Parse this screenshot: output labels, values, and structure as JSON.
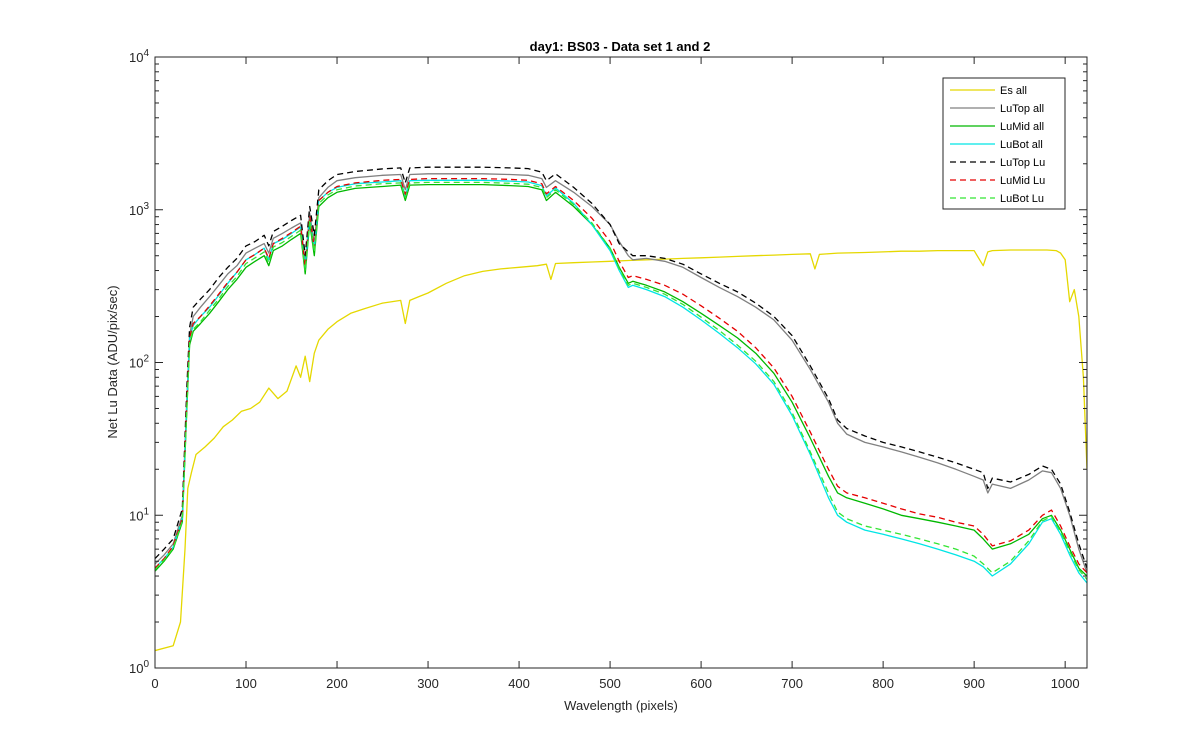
{
  "chart_data": {
    "type": "line",
    "title": "day1: BS03 - Data set 1 and 2",
    "xlabel": "Wavelength (pixels)",
    "ylabel": "Net Lu Data (ADU/pix/sec)",
    "xlim": [
      0,
      1024
    ],
    "ylim": [
      1,
      10000
    ],
    "yscale": "log",
    "grid": false,
    "legend_position": "top-right",
    "x_ticks": [
      0,
      100,
      200,
      300,
      400,
      500,
      600,
      700,
      800,
      900,
      1000
    ],
    "x_tick_labels": [
      "0",
      "100",
      "200",
      "300",
      "400",
      "500",
      "600",
      "700",
      "800",
      "900",
      "1000"
    ],
    "y_ticks": [
      1,
      10,
      100,
      1000,
      10000
    ],
    "y_tick_labels": [
      {
        "base": "10",
        "exp": "0"
      },
      {
        "base": "10",
        "exp": "1"
      },
      {
        "base": "10",
        "exp": "2"
      },
      {
        "base": "10",
        "exp": "3"
      },
      {
        "base": "10",
        "exp": "4"
      }
    ],
    "series": [
      {
        "name": "Es  all",
        "color": "#e5d800",
        "dash": "solid",
        "x": [
          0,
          20,
          28,
          33,
          36,
          40,
          45,
          55,
          65,
          75,
          85,
          95,
          105,
          115,
          125,
          135,
          145,
          155,
          160,
          165,
          170,
          175,
          180,
          190,
          200,
          215,
          230,
          250,
          270,
          275,
          280,
          290,
          300,
          320,
          340,
          360,
          380,
          400,
          420,
          430,
          435,
          440,
          460,
          480,
          500,
          520,
          540,
          560,
          580,
          600,
          620,
          640,
          660,
          680,
          700,
          720,
          725,
          730,
          750,
          780,
          800,
          820,
          840,
          860,
          880,
          900,
          910,
          915,
          920,
          940,
          960,
          980,
          990,
          995,
          1000,
          1005,
          1010,
          1015,
          1020,
          1024
        ],
        "y": [
          1.3,
          1.4,
          2.0,
          6,
          15,
          19,
          25,
          28,
          32,
          38,
          42,
          48,
          50,
          55,
          68,
          58,
          65,
          95,
          80,
          110,
          75,
          115,
          140,
          165,
          185,
          210,
          225,
          245,
          255,
          180,
          255,
          270,
          285,
          330,
          370,
          395,
          410,
          420,
          430,
          440,
          350,
          445,
          450,
          455,
          460,
          465,
          470,
          475,
          480,
          485,
          490,
          495,
          500,
          505,
          510,
          515,
          410,
          510,
          520,
          525,
          530,
          535,
          535,
          540,
          540,
          540,
          430,
          530,
          540,
          545,
          545,
          545,
          540,
          520,
          470,
          250,
          300,
          200,
          80,
          20
        ]
      },
      {
        "name": "LuTop  all",
        "color": "#808080",
        "dash": "solid",
        "x": [
          0,
          10,
          20,
          30,
          35,
          38,
          42,
          50,
          60,
          70,
          80,
          90,
          100,
          110,
          120,
          125,
          130,
          140,
          150,
          160,
          165,
          170,
          175,
          180,
          190,
          200,
          220,
          250,
          270,
          275,
          280,
          300,
          330,
          360,
          390,
          410,
          425,
          430,
          440,
          460,
          480,
          500,
          510,
          520,
          525,
          540,
          560,
          580,
          600,
          620,
          640,
          660,
          680,
          700,
          720,
          740,
          750,
          760,
          780,
          800,
          820,
          840,
          860,
          880,
          900,
          910,
          915,
          920,
          940,
          960,
          975,
          985,
          995,
          1005,
          1015,
          1024
        ],
        "y": [
          4.8,
          5.5,
          6.5,
          10,
          60,
          150,
          200,
          230,
          270,
          320,
          380,
          430,
          520,
          560,
          600,
          520,
          650,
          700,
          760,
          820,
          450,
          950,
          600,
          1200,
          1400,
          1550,
          1620,
          1680,
          1700,
          1350,
          1700,
          1720,
          1720,
          1720,
          1700,
          1680,
          1600,
          1400,
          1550,
          1300,
          1050,
          800,
          620,
          500,
          470,
          480,
          460,
          420,
          360,
          310,
          270,
          230,
          190,
          140,
          90,
          55,
          40,
          34,
          30,
          28,
          26,
          24,
          22,
          20,
          18,
          17,
          14,
          16,
          15,
          17,
          19.5,
          19,
          15,
          10,
          6,
          4.2
        ]
      },
      {
        "name": "LuMid  all",
        "color": "#00b800",
        "dash": "solid",
        "x": [
          0,
          10,
          20,
          30,
          35,
          38,
          42,
          50,
          60,
          70,
          80,
          90,
          100,
          110,
          120,
          125,
          130,
          140,
          150,
          160,
          165,
          170,
          175,
          180,
          190,
          200,
          220,
          250,
          270,
          275,
          280,
          300,
          330,
          360,
          390,
          410,
          425,
          430,
          440,
          460,
          480,
          500,
          510,
          520,
          525,
          540,
          560,
          580,
          600,
          620,
          640,
          660,
          680,
          700,
          720,
          740,
          750,
          760,
          780,
          800,
          820,
          840,
          860,
          880,
          900,
          910,
          920,
          940,
          960,
          975,
          985,
          995,
          1005,
          1015,
          1024
        ],
        "y": [
          4.3,
          5.0,
          6.0,
          9,
          50,
          130,
          160,
          180,
          210,
          250,
          300,
          350,
          420,
          460,
          500,
          430,
          540,
          580,
          640,
          700,
          380,
          820,
          500,
          1050,
          1200,
          1300,
          1380,
          1420,
          1450,
          1150,
          1450,
          1460,
          1460,
          1460,
          1440,
          1420,
          1350,
          1150,
          1300,
          1050,
          800,
          560,
          420,
          330,
          340,
          320,
          290,
          250,
          210,
          175,
          145,
          115,
          85,
          55,
          32,
          18,
          14,
          13,
          12,
          11,
          10,
          9.5,
          9,
          8.5,
          8,
          7,
          6,
          6.5,
          7.5,
          9.5,
          10,
          8,
          6,
          4.5,
          4.0
        ]
      },
      {
        "name": "LuBot  all",
        "color": "#00e5e5",
        "dash": "solid",
        "x": [
          0,
          10,
          20,
          30,
          35,
          38,
          42,
          50,
          60,
          70,
          80,
          90,
          100,
          110,
          120,
          125,
          130,
          140,
          150,
          160,
          165,
          170,
          175,
          180,
          190,
          200,
          220,
          250,
          270,
          275,
          280,
          300,
          330,
          360,
          390,
          410,
          425,
          430,
          440,
          460,
          480,
          500,
          510,
          520,
          525,
          540,
          560,
          580,
          600,
          620,
          640,
          660,
          680,
          700,
          720,
          740,
          750,
          760,
          780,
          800,
          820,
          840,
          860,
          880,
          900,
          910,
          920,
          940,
          960,
          975,
          985,
          995,
          1005,
          1015,
          1024
        ],
        "y": [
          4.5,
          5.2,
          6.2,
          9.5,
          55,
          145,
          175,
          200,
          230,
          275,
          330,
          390,
          470,
          510,
          560,
          470,
          600,
          640,
          700,
          770,
          420,
          900,
          550,
          1150,
          1300,
          1400,
          1480,
          1520,
          1550,
          1230,
          1550,
          1560,
          1560,
          1560,
          1540,
          1520,
          1440,
          1230,
          1390,
          1100,
          800,
          540,
          400,
          310,
          320,
          300,
          270,
          230,
          190,
          155,
          125,
          98,
          72,
          45,
          25,
          13,
          10,
          9,
          8,
          7.5,
          7,
          6.5,
          6,
          5.5,
          5,
          4.6,
          4.0,
          4.8,
          6.5,
          9,
          9.5,
          7.5,
          5.5,
          4.2,
          3.6
        ]
      },
      {
        "name": "LuTop  Lu",
        "color": "#000000",
        "dash": "dashed",
        "x": [
          0,
          10,
          20,
          30,
          35,
          38,
          42,
          50,
          60,
          70,
          80,
          90,
          100,
          110,
          120,
          125,
          130,
          140,
          150,
          160,
          165,
          170,
          175,
          180,
          190,
          200,
          220,
          250,
          270,
          275,
          280,
          300,
          330,
          360,
          390,
          410,
          425,
          430,
          440,
          460,
          480,
          500,
          510,
          520,
          525,
          540,
          560,
          580,
          600,
          620,
          640,
          660,
          680,
          700,
          720,
          740,
          750,
          760,
          780,
          800,
          820,
          840,
          860,
          880,
          900,
          910,
          915,
          920,
          940,
          960,
          975,
          985,
          995,
          1005,
          1015,
          1024
        ],
        "y": [
          5.2,
          6.0,
          7.0,
          11,
          70,
          170,
          230,
          260,
          300,
          360,
          420,
          480,
          580,
          620,
          680,
          580,
          720,
          780,
          850,
          920,
          500,
          1050,
          680,
          1350,
          1550,
          1700,
          1780,
          1850,
          1880,
          1500,
          1880,
          1900,
          1900,
          1900,
          1880,
          1860,
          1760,
          1550,
          1720,
          1400,
          1100,
          800,
          600,
          530,
          500,
          500,
          480,
          440,
          380,
          330,
          290,
          245,
          200,
          150,
          95,
          58,
          42,
          37,
          33,
          30,
          28,
          26,
          24,
          22,
          20,
          19,
          15,
          17.5,
          16.5,
          18.5,
          21,
          20,
          16,
          10.5,
          6.5,
          4.5
        ]
      },
      {
        "name": "LuMid  Lu",
        "color": "#e50000",
        "dash": "dashed",
        "x": [
          0,
          10,
          20,
          30,
          35,
          38,
          42,
          50,
          60,
          70,
          80,
          90,
          100,
          110,
          120,
          125,
          130,
          140,
          150,
          160,
          165,
          170,
          175,
          180,
          190,
          200,
          220,
          250,
          270,
          275,
          280,
          300,
          330,
          360,
          390,
          410,
          425,
          430,
          440,
          460,
          480,
          500,
          510,
          520,
          525,
          540,
          560,
          580,
          600,
          620,
          640,
          660,
          680,
          700,
          720,
          740,
          750,
          760,
          780,
          800,
          820,
          840,
          860,
          880,
          900,
          910,
          920,
          940,
          960,
          975,
          985,
          995,
          1005,
          1015,
          1024
        ],
        "y": [
          4.5,
          5.2,
          6.3,
          9.5,
          55,
          145,
          180,
          200,
          235,
          280,
          335,
          390,
          470,
          510,
          560,
          480,
          600,
          650,
          710,
          780,
          420,
          910,
          560,
          1150,
          1300,
          1420,
          1500,
          1560,
          1580,
          1260,
          1580,
          1600,
          1600,
          1600,
          1580,
          1560,
          1480,
          1270,
          1420,
          1150,
          880,
          620,
          460,
          360,
          370,
          350,
          320,
          280,
          235,
          195,
          160,
          125,
          92,
          60,
          35,
          20,
          15.5,
          14,
          13,
          12,
          11,
          10.2,
          9.7,
          9,
          8.5,
          7.5,
          6.3,
          6.8,
          8,
          10,
          10.8,
          8.5,
          6.3,
          4.8,
          4.2
        ]
      },
      {
        "name": "LuBot  Lu",
        "color": "#33e533",
        "dash": "dashed",
        "x": [
          0,
          10,
          20,
          30,
          35,
          38,
          42,
          50,
          60,
          70,
          80,
          90,
          100,
          110,
          120,
          125,
          130,
          140,
          150,
          160,
          165,
          170,
          175,
          180,
          190,
          200,
          220,
          250,
          270,
          275,
          280,
          300,
          330,
          360,
          390,
          410,
          425,
          430,
          440,
          460,
          480,
          500,
          510,
          520,
          525,
          540,
          560,
          580,
          600,
          620,
          640,
          660,
          680,
          700,
          720,
          740,
          750,
          760,
          780,
          800,
          820,
          840,
          860,
          880,
          900,
          910,
          920,
          940,
          960,
          975,
          985,
          995,
          1005,
          1015,
          1024
        ],
        "y": [
          4.4,
          5.1,
          6.1,
          9.2,
          52,
          135,
          165,
          185,
          220,
          260,
          315,
          365,
          445,
          485,
          530,
          450,
          570,
          610,
          670,
          735,
          400,
          860,
          530,
          1100,
          1250,
          1350,
          1430,
          1480,
          1500,
          1200,
          1500,
          1510,
          1510,
          1510,
          1490,
          1470,
          1400,
          1200,
          1350,
          1080,
          820,
          560,
          410,
          320,
          330,
          310,
          280,
          240,
          198,
          162,
          130,
          102,
          75,
          47,
          26,
          14,
          10.5,
          9.5,
          8.5,
          8,
          7.5,
          7,
          6.5,
          6,
          5.4,
          4.8,
          4.2,
          5,
          6.8,
          9.2,
          9.8,
          7.8,
          5.8,
          4.4,
          3.8
        ]
      }
    ]
  }
}
